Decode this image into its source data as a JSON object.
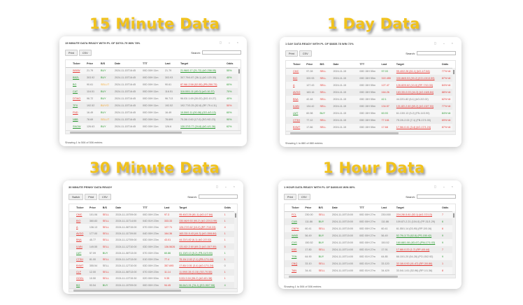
{
  "headings": {
    "m15": "15 Minute Data",
    "d1": "1 Day Data",
    "m30": "30 Minute Data",
    "h1": "1 Hour Data"
  },
  "colors": {
    "heading": "#f1c21b",
    "buy": "#2e9a34",
    "sell": "#e53935",
    "warn": "#f2a52b"
  },
  "window_controls": "◻ ⌄ ×",
  "panels": {
    "m15": {
      "title": "15 MINUTE DATA READY WITH PL OF $3701.75 WIN 78%",
      "buttons": [
        "Print",
        "CSV"
      ],
      "search_label": "Search:",
      "columns": [
        "Ticker",
        "Price",
        "B/S",
        "Date",
        "TTT",
        "Last",
        "Target",
        "Odds"
      ],
      "rows": [
        {
          "ticker": "WWW",
          "price": "21.79",
          "bs": "BUY",
          "date": "2024-11-15T16:45",
          "ttt": "00D 00H 11m",
          "last": "21.79",
          "target": "21.96/0.17 (21-72) (kO-258.05)",
          "odds": "55%",
          "colors": {
            "ticker": "red",
            "bs": "green",
            "target": "green",
            "odds": "green"
          }
        },
        {
          "ticker": "BBZL",
          "price": "303.92",
          "bs": "BUY",
          "date": "2024-11-15T16:45",
          "ttt": "00D 00H 11m",
          "last": "303.93",
          "target": "307.79/4.87 (36-1) (kO-120.30)",
          "odds": "40%",
          "colors": {
            "ticker": "green",
            "bs": "green",
            "target": "gray",
            "odds": "green"
          }
        },
        {
          "ticker": "BG",
          "price": "90.61",
          "bs": "SELL/T",
          "date": "2024-11-15T16:45",
          "ttt": "00D 00H 11m",
          "last": "90.61",
          "target": "87.98/-2.58 (52-55) (PB-250.73)",
          "odds": "60%",
          "colors": {
            "ticker": "green",
            "bs": "orange",
            "target": "red",
            "odds": "green"
          }
        },
        {
          "ticker": "CAT",
          "price": "116.51",
          "bs": "BUY",
          "date": "2024-11-15T16:45",
          "ttt": "00D 00H 11m",
          "last": "116.51",
          "target": "116.00/1.11 (40-0) (oO-10.37)",
          "odds": "70%",
          "colors": {
            "ticker": "green",
            "bs": "green",
            "target": "green",
            "odds": "green"
          }
        },
        {
          "ticker": "DTWO",
          "price": "96.72",
          "bs": "BUY",
          "date": "2024-11-15T16:45",
          "ttt": "00D 00H 11m",
          "last": "96.713",
          "target": "96.03/-1.69 (30-02) (DO-10.27)",
          "odds": "40%",
          "colors": {
            "ticker": "red",
            "bs": "green",
            "target": "gray",
            "odds": "green"
          }
        },
        {
          "ticker": "TPX",
          "price": "192.52",
          "bs": "BUY/O",
          "date": "2024-11-15T16:45",
          "ttt": "00D 00H 11m",
          "last": "192.52",
          "target": "192.77/0.25 (52-8) (RF-79.4.11)",
          "odds": "50%",
          "colors": {
            "ticker": "green",
            "bs": "orange",
            "target": "gray",
            "odds": "red"
          }
        },
        {
          "ticker": "FND",
          "price": "16.49",
          "bs": "BUY",
          "date": "2024-11-15T16:45",
          "ttt": "00D 00H 11m",
          "last": "16.49",
          "target": "19.59/0.11 (00-08) (GO-4/0.13)",
          "odds": "60%",
          "colors": {
            "ticker": "red",
            "bs": "green",
            "target": "green",
            "odds": "green"
          }
        },
        {
          "ticker": "NBB",
          "price": "78.69",
          "bs": "SELL/T",
          "date": "2024-11-15T16:45",
          "ttt": "00D 00H 11m",
          "last": "78.699",
          "target": "75.28/-0.60 (17-0) (SO-ND.23)",
          "odds": "90%",
          "colors": {
            "ticker": "green",
            "bs": "orange",
            "target": "gray",
            "odds": "green"
          }
        },
        {
          "ticker": "SNOW",
          "price": "126.63",
          "bs": "BUY",
          "date": "2024-11-15T16:45",
          "ttt": "00D 00H 11m",
          "last": "126.6",
          "target": "130.37/3.77 (24-8) (kO-4/1.36)",
          "odds": "62%",
          "colors": {
            "ticker": "green",
            "bs": "green",
            "target": "green",
            "odds": "green"
          }
        }
      ],
      "footer": "Showing 1 to 506 of 506 entries"
    },
    "d1": {
      "title": "1 DAY DATA READY WITH PL OF $8835.78 WIN 72%",
      "buttons": [
        "Print",
        "CSV"
      ],
      "search_label": "Search:",
      "columns": [
        "Ticker",
        "Price",
        "B/S",
        "Date",
        "TTT",
        "Last",
        "Target",
        "Odds"
      ],
      "rows": [
        {
          "ticker": "CMC",
          "price": "97.28",
          "bs": "SELL",
          "date": "2024-11-15",
          "ttt": "00D 15H 55m",
          "last": "97.03",
          "target": "95.40/2.26 (61-1) (kO-1/7.84)",
          "odds": "77%+dt",
          "colors": {
            "ticker": "red",
            "bs": "red",
            "last": "green",
            "target": "red",
            "odds": "red"
          }
        },
        {
          "ticker": "BIO",
          "price": "320.93",
          "bs": "SELL",
          "date": "2024-11-15",
          "ttt": "00D 15H 55m",
          "last": "322.455",
          "target": "330.86/5.53 (90-2) (KO-13/13.59)",
          "odds": "87%+dt",
          "colors": {
            "ticker": "red",
            "bs": "red",
            "last": "red",
            "target": "red",
            "odds": "red"
          }
        },
        {
          "ticker": "A",
          "price": "127.43",
          "bs": "SELL",
          "date": "2024-11-15",
          "ttt": "00D 15H 55m",
          "last": "127.47",
          "target": "126.82/0.62 (10-0) (RF-7/10.33)",
          "odds": "84%+dt",
          "colors": {
            "ticker": "red",
            "bs": "red",
            "last": "red",
            "target": "red",
            "odds": "red"
          }
        },
        {
          "ticker": "AVGO",
          "price": "163.16",
          "bs": "SELL",
          "date": "2024-11-15",
          "ttt": "00D 15H 55m",
          "last": "164.26",
          "target": "163.33/-0.03 (44-3) (kO-16/8.84)",
          "odds": "88%+dt",
          "colors": {
            "ticker": "red",
            "bs": "red",
            "last": "red",
            "target": "red",
            "odds": "red"
          }
        },
        {
          "ticker": "BNA",
          "price": "42.48",
          "bs": "SELL",
          "date": "2024-11-15",
          "ttt": "00D 15H 55m",
          "last": "42.1",
          "target": "44.22/1.82 (6-1) (kO-2/2.02)",
          "odds": "62%+dt",
          "colors": {
            "ticker": "red",
            "bs": "red",
            "last": "green",
            "target": "gray",
            "odds": "red"
          }
        },
        {
          "ticker": "ILMN",
          "price": "134.42",
          "bs": "SELL",
          "date": "2024-11-15",
          "ttt": "00D 15H 55m",
          "last": "134.57",
          "target": "131.82/-2.60 (69-2) (kO-15/7.53)",
          "odds": "77%+dt",
          "colors": {
            "ticker": "red",
            "bs": "red",
            "last": "red",
            "target": "red",
            "odds": "red"
          }
        },
        {
          "ticker": "LMT",
          "price": "60.98",
          "bs": "BUY",
          "date": "2024-11-15",
          "ttt": "00D 15H 55m",
          "last": "60.93",
          "target": "61.13/0.13 (5-2) (FB-11/3.90)",
          "odds": "84%+dt",
          "colors": {
            "ticker": "green",
            "bs": "green",
            "last": "green",
            "target": "gray",
            "odds": "green"
          }
        },
        {
          "ticker": "CTSH",
          "price": "77.12",
          "bs": "SELL",
          "date": "2024-11-15",
          "ttt": "00D 15H 55m",
          "last": "77.161",
          "target": "75.19/-2.02 (7-1) (FB-17/1.00)",
          "odds": "69%+dt",
          "colors": {
            "ticker": "red",
            "bs": "red",
            "last": "red",
            "target": "gray",
            "odds": "red"
          }
        },
        {
          "ticker": "BXMT",
          "price": "17.86",
          "bs": "SELL",
          "date": "2024-11-15",
          "ttt": "00D 15H 55m",
          "last": "17.68",
          "target": "17.56/-0.41 (3-4) (kO-17/1.24)",
          "odds": "87%+dt",
          "colors": {
            "ticker": "red",
            "bs": "red",
            "last": "red",
            "target": "red",
            "odds": "red"
          }
        }
      ],
      "footer": "Showing 1 to 880 of 880 entries"
    },
    "m30": {
      "title": "30 MINUTE PENNY DATA READY",
      "buttons": [
        "Switch",
        "Print",
        "CSV"
      ],
      "search_label": "Search:",
      "columns": [
        "Ticker",
        "Price",
        "B/S",
        "Date",
        "TTT",
        "Last",
        "Target",
        "Odds"
      ],
      "rows": [
        {
          "ticker": "CMC",
          "price": "101.06",
          "bs": "SELL",
          "date": "2024-11-15T09:00",
          "ttt": "00D 00H 23m",
          "last": "97.3",
          "target": "95.40/2.26 (61-1) (kO-1/7.84)",
          "odds": "1",
          "colors": {
            "ticker": "red",
            "bs": "red",
            "last": "red",
            "target": "red",
            "odds": "red"
          }
        },
        {
          "ticker": "BIO",
          "price": "360.83",
          "bs": "SELL",
          "date": "2024-11-11T14:00",
          "ttt": "04D 01H 23m",
          "last": "333.33",
          "target": "330.86/9.53 (90-2) (kO-22/13.99)",
          "odds": "1",
          "colors": {
            "ticker": "red",
            "bs": "red",
            "last": "red",
            "target": "red",
            "odds": "red"
          }
        },
        {
          "ticker": "A",
          "price": "136.13",
          "bs": "SELL",
          "date": "2024-11-08T15:00",
          "ttt": "07D 03H 23m",
          "last": "127.71",
          "target": "126.27/0.62 (10-0) (RF-7/10.33)",
          "odds": "4",
          "colors": {
            "ticker": "red",
            "bs": "red",
            "last": "red",
            "target": "red",
            "odds": "red"
          }
        },
        {
          "ticker": "AVGO",
          "price": "177.00",
          "bs": "SELL",
          "date": "2024-11-11T09:00",
          "ttt": "04D 00H 23m",
          "last": "164.36",
          "target": "163.33/-0.43 (44-3) (kO-15/6.84)",
          "odds": "1",
          "colors": {
            "ticker": "red",
            "bs": "red",
            "last": "red",
            "target": "red",
            "odds": "red"
          }
        },
        {
          "ticker": "BNA",
          "price": "45.77",
          "bs": "SELL",
          "date": "2024-11-12T09:00",
          "ttt": "03D 00H 23m",
          "last": "43.01",
          "target": "44.22/1.82 (6-1) (kO-2/2.02)",
          "odds": "1",
          "colors": {
            "ticker": "red",
            "bs": "red",
            "last": "red",
            "target": "red",
            "odds": "red"
          }
        },
        {
          "ticker": "ILMN",
          "price": "149.55",
          "bs": "SELL",
          "date": "2024-11-12T10:00",
          "ttt": "03D 00H 23m",
          "last": "136.5626",
          "target": "131.82/-2.60 (69-2) (kO-15/7.55)",
          "odds": "5",
          "colors": {
            "ticker": "red",
            "bs": "red",
            "last": "red",
            "target": "red",
            "odds": "red"
          }
        },
        {
          "ticker": "LMT",
          "price": "57.09",
          "bs": "BUY",
          "date": "2024-11-08T13:00",
          "ttt": "07D 03H 23m",
          "last": "60.86",
          "target": "61.13/0.13 (5-2) (FB-11/3.90)",
          "odds": "1",
          "colors": {
            "ticker": "green",
            "bs": "green",
            "last": "green",
            "target": "green",
            "odds": "green"
          }
        },
        {
          "ticker": "CTSH",
          "price": "81.00",
          "bs": "SELL",
          "date": "2024-11-14T13:00",
          "ttt": "01D 03H 23m",
          "last": "77.4",
          "target": "75.19/-2.02 (7-1) (FB-17/1.00)",
          "odds": "1",
          "colors": {
            "ticker": "red",
            "bs": "red",
            "last": "red",
            "target": "red",
            "odds": "red"
          }
        },
        {
          "ticker": "BXMT",
          "price": "355.54",
          "bs": "SELL",
          "date": "2024-11-12T10:00",
          "ttt": "03D 00H 23m",
          "last": "357.695",
          "target": "17.80/-0.51 (3-4) (kO-17/1.24)",
          "odds": "0",
          "colors": {
            "ticker": "red",
            "bs": "gray",
            "last": "red",
            "target": "red",
            "odds": "gray"
          }
        },
        {
          "ticker": "CLF",
          "price": "12.00",
          "bs": "SELL",
          "date": "2024-11-08T13:00",
          "ttt": "07D 03H 23m",
          "last": "11.14",
          "target": "11.09/0.28 (0-15) (SO-70.55)",
          "odds": "1",
          "colors": {
            "ticker": "red",
            "bs": "red",
            "last": "red",
            "target": "red",
            "odds": "red"
          }
        },
        {
          "ticker": "GOGL",
          "price": "10.50",
          "bs": "SELL",
          "date": "2024-11-13T15:30",
          "ttt": "02D 00H 53m",
          "last": "9.35",
          "target": "9.00/-0.04 (96-2) (kO-8/1.38)",
          "odds": "1",
          "colors": {
            "ticker": "red",
            "bs": "red",
            "last": "red",
            "target": "red",
            "odds": "red"
          }
        },
        {
          "ticker": "BG",
          "price": "93.54",
          "bs": "BUY",
          "date": "2024-11-15T09:00",
          "ttt": "00D 00H 23m",
          "last": "94.45",
          "target": "96.64/1.91 (7A-1) (EO-90/7.55)",
          "odds": "4",
          "colors": {
            "ticker": "green",
            "bs": "green",
            "last": "red",
            "target": "green",
            "odds": "green"
          }
        }
      ],
      "footer": ""
    },
    "h1": {
      "title": "1 HOUR DATA READY WITH PL OF $4803.66 WIN 80%",
      "buttons": [
        "Print",
        "CSV"
      ],
      "search_label": "Search:",
      "columns": [
        "Ticker",
        "Price",
        "B/S",
        "Date",
        "TTT",
        "Last",
        "Target",
        "Odds"
      ],
      "rows": [
        {
          "ticker": "FCL",
          "price": "230.00",
          "bs": "SELL",
          "date": "2024-11-15T15:00",
          "ttt": "00D 00H 27m",
          "last": "230.000",
          "target": "224.28/-5.81 (52-1) (kO-7/2.13)",
          "odds": "7",
          "colors": {
            "ticker": "red",
            "bs": "red",
            "target": "red",
            "odds": "red"
          }
        },
        {
          "ticker": "CUB",
          "price": "111.86",
          "bs": "BUY",
          "date": "2024-11-15T15:00",
          "ttt": "00D 00H 27m",
          "last": "111.86",
          "target": "109.87/-2.21 (104-0) (FP-31/1.29)",
          "odds": "6",
          "colors": {
            "ticker": "green",
            "bs": "green",
            "target": "gray",
            "odds": "green"
          }
        },
        {
          "ticker": "CNPH",
          "price": "60.41",
          "bs": "SELL",
          "date": "2024-11-15T15:00",
          "ttt": "00D 00H 27m",
          "last": "60.41",
          "target": "61.55/1.14 (03-90) (RP-3/0.16)",
          "odds": "6",
          "colors": {
            "ticker": "red",
            "bs": "red",
            "target": "gray",
            "odds": "red"
          }
        },
        {
          "ticker": "WMD",
          "price": "56.49",
          "bs": "BUY",
          "date": "2024-11-15T15:00",
          "ttt": "00D 00H 27m",
          "last": "56.49",
          "target": "52.79/-3.73 (62-5) (PS-150.42)",
          "odds": "9",
          "colors": {
            "ticker": "green",
            "bs": "green",
            "target": "green",
            "odds": "green"
          }
        },
        {
          "ticker": "CVS",
          "price": "150.52",
          "bs": "BUY",
          "date": "2024-11-15T15:00",
          "ttt": "00D 00H 27m",
          "last": "150.52",
          "target": "160.88/1.06 (4D-67) (PM-17/1.03)",
          "odds": "9",
          "colors": {
            "ticker": "green",
            "bs": "green",
            "target": "green",
            "odds": "green"
          }
        },
        {
          "ticker": "KBS",
          "price": "17.80",
          "bs": "SELL",
          "date": "2024-11-15T14:00",
          "ttt": "00D 01H 27m",
          "last": "17.91",
          "target": "17.68/-0.22 (1-7) (RP-4/0.44)",
          "odds": "7",
          "colors": {
            "ticker": "red",
            "bs": "red",
            "target": "red",
            "odds": "red"
          }
        },
        {
          "ticker": "TSN",
          "price": "64.90",
          "bs": "BUY",
          "date": "2024-11-15T14:00",
          "ttt": "00D 01H 27m",
          "last": "64.85",
          "target": "66.10/1.20 (54-28) (PO-15/2.92)",
          "odds": "9",
          "colors": {
            "ticker": "green",
            "bs": "green",
            "target": "gray",
            "odds": "green"
          }
        },
        {
          "ticker": "CNQ",
          "price": "33.10",
          "bs": "SELL",
          "date": "2024-11-15T14:00",
          "ttt": "00D 01H 27m",
          "last": "33.120",
          "target": "32.18/-0.92 (41-47) (RP-3/0.86)",
          "odds": "1",
          "colors": {
            "ticker": "red",
            "bs": "red",
            "target": "red",
            "odds": "red"
          }
        },
        {
          "ticker": "TAN",
          "price": "34.41",
          "bs": "SELL",
          "date": "2024-11-15T14:00",
          "ttt": "00D 01H 27m",
          "last": "34.429",
          "target": "33.04/-1.61 (52-96) (RP-1/1.36)",
          "odds": "8",
          "colors": {
            "ticker": "red",
            "bs": "red",
            "target": "gray",
            "odds": "red"
          }
        }
      ],
      "footer": "Showing 1 to 506 of 506 entries"
    }
  }
}
